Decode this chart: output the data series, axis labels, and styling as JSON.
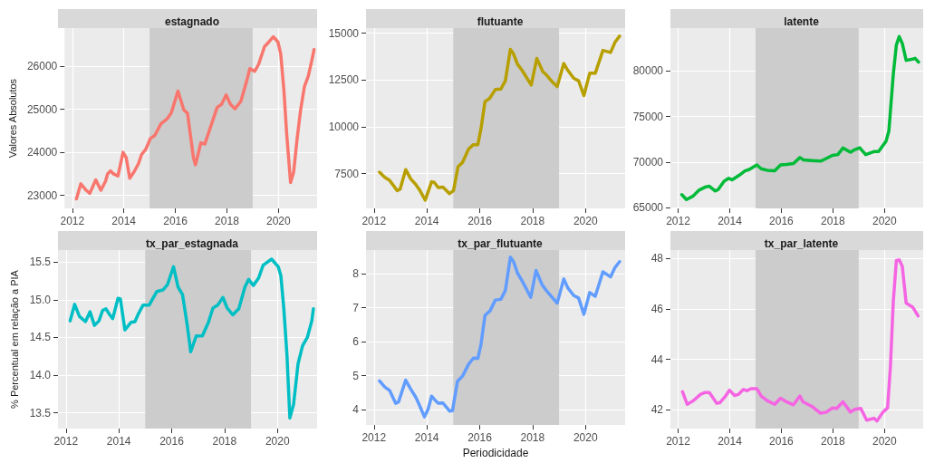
{
  "chart_data": [
    {
      "type": "line",
      "title": "estagnado",
      "ylabel": "Valores Absolutos",
      "color": "#f8766d",
      "grid": true,
      "xlim": [
        2011.7,
        2021.5
      ],
      "xticks": [
        2012,
        2014,
        2016,
        2018,
        2020
      ],
      "ylim": [
        22700,
        26880
      ],
      "yticks": [
        23000,
        24000,
        25000,
        26000
      ],
      "bands": [
        {
          "axis": "x",
          "from": 2015,
          "to": 2019,
          "color": "#cccccc"
        }
      ],
      "x": [
        2012.16,
        2012.33,
        2012.54,
        2012.68,
        2012.91,
        2013.11,
        2013.29,
        2013.37,
        2013.48,
        2013.6,
        2013.77,
        2013.97,
        2014.09,
        2014.23,
        2014.4,
        2014.57,
        2014.69,
        2014.86,
        2015.03,
        2015.2,
        2015.44,
        2015.67,
        2015.84,
        2016.1,
        2016.33,
        2016.47,
        2016.7,
        2016.78,
        2016.99,
        2017.14,
        2017.39,
        2017.62,
        2017.79,
        2017.97,
        2018.14,
        2018.31,
        2018.54,
        2018.77,
        2018.89,
        2019.08,
        2019.23,
        2019.46,
        2019.63,
        2019.8,
        2019.98,
        2020.09,
        2020.21,
        2020.32,
        2020.47,
        2020.59,
        2020.72,
        2020.86,
        2021.01,
        2021.16,
        2021.3,
        2021.38
      ],
      "values": [
        22920,
        23270,
        23120,
        23050,
        23360,
        23120,
        23330,
        23500,
        23570,
        23500,
        23450,
        24000,
        23880,
        23400,
        23550,
        23740,
        23950,
        24080,
        24320,
        24390,
        24660,
        24770,
        24910,
        25420,
        24980,
        24910,
        23880,
        23710,
        24220,
        24190,
        24630,
        25040,
        25110,
        25330,
        25110,
        25010,
        25180,
        25660,
        25940,
        25880,
        26040,
        26450,
        26560,
        26680,
        26560,
        26280,
        25460,
        24430,
        23300,
        23540,
        24290,
        24980,
        25530,
        25770,
        26140,
        26380
      ]
    },
    {
      "type": "line",
      "title": "flutuante",
      "color": "#b79f00",
      "grid": true,
      "xlim": [
        2011.7,
        2021.5
      ],
      "xticks": [
        2012,
        2014,
        2016,
        2018,
        2020
      ],
      "ylim": [
        5650,
        15270
      ],
      "yticks": [
        7500,
        10000,
        12500,
        15000
      ],
      "bands": [
        {
          "axis": "x",
          "from": 2015,
          "to": 2019,
          "color": "#cccccc"
        }
      ],
      "x": [
        2012.21,
        2012.41,
        2012.59,
        2012.88,
        2012.99,
        2013.2,
        2013.39,
        2013.59,
        2013.74,
        2013.94,
        2014.18,
        2014.28,
        2014.43,
        2014.61,
        2014.86,
        2015.01,
        2015.18,
        2015.35,
        2015.58,
        2015.76,
        2015.93,
        2016.05,
        2016.2,
        2016.37,
        2016.59,
        2016.8,
        2016.97,
        2017.16,
        2017.28,
        2017.43,
        2017.6,
        2017.95,
        2018.16,
        2018.39,
        2018.52,
        2018.76,
        2018.93,
        2019.18,
        2019.33,
        2019.56,
        2019.74,
        2019.94,
        2020.16,
        2020.37,
        2020.66,
        2020.95,
        2021.12,
        2021.29
      ],
      "values": [
        7580,
        7310,
        7150,
        6600,
        6680,
        7720,
        7230,
        6910,
        6600,
        6090,
        7070,
        7040,
        6760,
        6790,
        6440,
        6600,
        7870,
        8100,
        8820,
        9050,
        9050,
        9920,
        11350,
        11510,
        11990,
        12020,
        12460,
        14130,
        13890,
        13340,
        13020,
        12230,
        13650,
        12940,
        12780,
        12380,
        12150,
        13380,
        13020,
        12590,
        12460,
        11670,
        12860,
        12860,
        14080,
        13970,
        14520,
        14840
      ]
    },
    {
      "type": "line",
      "title": "latente",
      "color": "#00ba38",
      "grid": true,
      "xlim": [
        2011.7,
        2021.5
      ],
      "xticks": [
        2012,
        2014,
        2016,
        2018,
        2020
      ],
      "ylim": [
        64950,
        84660
      ],
      "yticks": [
        65000,
        70000,
        75000,
        80000
      ],
      "bands": [
        {
          "axis": "x",
          "from": 2015,
          "to": 2019,
          "color": "#cccccc"
        }
      ],
      "x": [
        2012.14,
        2012.32,
        2012.58,
        2012.81,
        2013.04,
        2013.21,
        2013.44,
        2013.55,
        2013.78,
        2013.96,
        2014.09,
        2014.36,
        2014.59,
        2014.76,
        2015.05,
        2015.22,
        2015.45,
        2015.74,
        2015.97,
        2016.2,
        2016.47,
        2016.72,
        2016.86,
        2017.18,
        2017.52,
        2017.7,
        2017.98,
        2018.19,
        2018.39,
        2018.68,
        2018.81,
        2019.04,
        2019.27,
        2019.59,
        2019.77,
        2020.06,
        2020.17,
        2020.34,
        2020.46,
        2020.57,
        2020.69,
        2020.84,
        2021.09,
        2021.18,
        2021.32
      ],
      "values": [
        66460,
        65910,
        66300,
        66950,
        67270,
        67370,
        66850,
        67010,
        67920,
        68240,
        68080,
        68560,
        69050,
        69210,
        69700,
        69280,
        69120,
        69050,
        69700,
        69760,
        69860,
        70510,
        70250,
        70180,
        70120,
        70350,
        70740,
        70830,
        71550,
        71090,
        71320,
        71580,
        70830,
        71160,
        71160,
        72290,
        73420,
        79580,
        82820,
        83730,
        82980,
        81130,
        81260,
        81360,
        80940
      ]
    },
    {
      "type": "line",
      "title": "tx_par_estagnada",
      "ylabel": "% Percentual em relação a PIA",
      "color": "#00bfc4",
      "grid": true,
      "xlim": [
        2011.7,
        2021.5
      ],
      "xticks": [
        2012,
        2014,
        2016,
        2018,
        2020
      ],
      "ylim": [
        13.29,
        15.66
      ],
      "yticks": [
        13.5,
        {
          "value": 14,
          "label": "14.0"
        },
        14.5,
        {
          "value": 15,
          "label": "15.0"
        },
        15.5
      ],
      "bands": [
        {
          "axis": "x",
          "from": 2015,
          "to": 2019,
          "color": "#cccccc"
        }
      ],
      "x": [
        2012.16,
        2012.33,
        2012.51,
        2012.74,
        2012.91,
        2013.08,
        2013.25,
        2013.39,
        2013.51,
        2013.66,
        2013.77,
        2013.97,
        2014.06,
        2014.23,
        2014.46,
        2014.61,
        2014.75,
        2014.92,
        2015.15,
        2015.44,
        2015.67,
        2015.84,
        2016.07,
        2016.24,
        2016.41,
        2016.59,
        2016.72,
        2016.93,
        2017.16,
        2017.39,
        2017.56,
        2017.74,
        2017.94,
        2018.1,
        2018.31,
        2018.54,
        2018.77,
        2018.91,
        2019.09,
        2019.29,
        2019.46,
        2019.78,
        2020.03,
        2020.13,
        2020.24,
        2020.36,
        2020.47,
        2020.61,
        2020.78,
        2020.95,
        2021.13,
        2021.3,
        2021.36
      ],
      "values": [
        14.72,
        14.94,
        14.78,
        14.71,
        14.84,
        14.66,
        14.72,
        14.86,
        14.88,
        14.8,
        14.75,
        15.02,
        15.01,
        14.6,
        14.7,
        14.71,
        14.82,
        14.93,
        14.93,
        15.11,
        15.13,
        15.2,
        15.44,
        15.17,
        15.07,
        14.66,
        14.31,
        14.52,
        14.52,
        14.7,
        14.89,
        14.93,
        15.03,
        14.89,
        14.8,
        14.88,
        15.17,
        15.27,
        15.19,
        15.29,
        15.46,
        15.54,
        15.44,
        15.32,
        14.89,
        14.27,
        13.43,
        13.61,
        14.15,
        14.39,
        14.5,
        14.72,
        14.88
      ]
    },
    {
      "type": "line",
      "title": "tx_par_flutuante",
      "xlabel": "Periodicidade",
      "color": "#619cff",
      "grid": true,
      "xlim": [
        2011.7,
        2021.5
      ],
      "xticks": [
        2012,
        2014,
        2016,
        2018,
        2020
      ],
      "ylim": [
        3.55,
        8.7
      ],
      "yticks": [
        4,
        5,
        6,
        7,
        8
      ],
      "bands": [
        {
          "axis": "x",
          "from": 2015,
          "to": 2019,
          "color": "#cccccc"
        }
      ],
      "x": [
        2012.21,
        2012.41,
        2012.59,
        2012.82,
        2012.93,
        2013.2,
        2013.39,
        2013.59,
        2013.74,
        2013.91,
        2014.05,
        2014.18,
        2014.28,
        2014.43,
        2014.61,
        2014.86,
        2014.97,
        2015.16,
        2015.35,
        2015.58,
        2015.76,
        2015.93,
        2016.05,
        2016.2,
        2016.39,
        2016.59,
        2016.8,
        2016.97,
        2017.16,
        2017.28,
        2017.43,
        2017.6,
        2017.93,
        2018.13,
        2018.36,
        2018.52,
        2018.76,
        2018.93,
        2019.18,
        2019.33,
        2019.56,
        2019.74,
        2019.94,
        2020.16,
        2020.37,
        2020.66,
        2020.95,
        2021.12,
        2021.29
      ],
      "values": [
        4.85,
        4.67,
        4.57,
        4.19,
        4.23,
        4.87,
        4.61,
        4.36,
        4.1,
        3.79,
        4.02,
        4.4,
        4.31,
        4.19,
        4.2,
        3.96,
        3.97,
        4.84,
        4.99,
        5.34,
        5.52,
        5.51,
        5.93,
        6.78,
        6.91,
        7.23,
        7.25,
        7.51,
        8.49,
        8.36,
        8.02,
        7.8,
        7.31,
        8.1,
        7.68,
        7.51,
        7.29,
        7.14,
        7.85,
        7.59,
        7.36,
        7.29,
        6.81,
        7.45,
        7.34,
        8.06,
        7.91,
        8.19,
        8.36
      ]
    },
    {
      "type": "line",
      "title": "tx_par_latente",
      "color": "#f564e3",
      "grid": true,
      "xlim": [
        2011.7,
        2021.5
      ],
      "xticks": [
        2012,
        2014,
        2016,
        2018,
        2020
      ],
      "ylim": [
        41.26,
        48.33
      ],
      "yticks": [
        42,
        44,
        46,
        48
      ],
      "bands": [
        {
          "axis": "x",
          "from": 2015,
          "to": 2019,
          "color": "#cccccc"
        }
      ],
      "x": [
        2012.17,
        2012.35,
        2012.6,
        2012.86,
        2013.04,
        2013.21,
        2013.5,
        2013.61,
        2013.84,
        2013.99,
        2014.19,
        2014.33,
        2014.53,
        2014.67,
        2014.82,
        2015.05,
        2015.22,
        2015.45,
        2015.74,
        2015.97,
        2016.2,
        2016.47,
        2016.72,
        2016.84,
        2017.18,
        2017.52,
        2017.75,
        2017.98,
        2018.15,
        2018.39,
        2018.68,
        2018.85,
        2019.08,
        2019.31,
        2019.59,
        2019.71,
        2019.94,
        2020.12,
        2020.23,
        2020.34,
        2020.46,
        2020.57,
        2020.69,
        2020.84,
        2021.09,
        2021.18,
        2021.3
      ],
      "values": [
        42.72,
        42.22,
        42.37,
        42.61,
        42.69,
        42.69,
        42.26,
        42.28,
        42.55,
        42.78,
        42.57,
        42.61,
        42.81,
        42.76,
        42.84,
        42.84,
        42.55,
        42.37,
        42.22,
        42.46,
        42.32,
        42.2,
        42.55,
        42.32,
        42.14,
        41.87,
        41.91,
        42.08,
        42.06,
        42.32,
        41.91,
        42.02,
        42.06,
        41.59,
        41.67,
        41.56,
        41.91,
        42.08,
        43.72,
        46.28,
        47.92,
        47.94,
        47.68,
        46.23,
        46.07,
        45.93,
        45.72
      ]
    }
  ]
}
